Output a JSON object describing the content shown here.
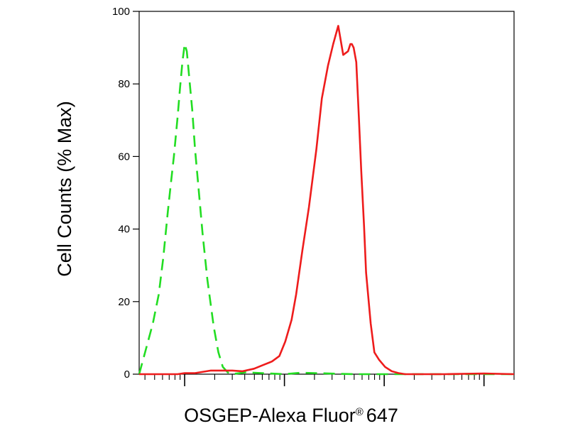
{
  "chart_data": {
    "type": "line",
    "title": "",
    "xlabel": "OSGEP-Alexa Fluor",
    "xlabel_mark": "®",
    "xlabel_suffix": "647",
    "ylabel": "Cell Counts (% Max)",
    "xscale": "log",
    "xlim": [
      3.5,
      20000
    ],
    "ylim": [
      0,
      100
    ],
    "yticks": [
      0,
      20,
      40,
      60,
      80,
      100
    ],
    "xticks_major": [
      10,
      100,
      1000
    ],
    "grid": false,
    "legend": "none",
    "series": [
      {
        "color": "#22dd22",
        "dash": "dashed",
        "x": [
          3.5,
          4.1,
          4.8,
          5.5,
          6.1,
          6.8,
          7.3,
          7.8,
          8.5,
          9.0,
          9.5,
          10.0,
          10.5,
          11.1,
          11.9,
          12.7,
          13.7,
          15.1,
          16.9,
          19.6,
          21.8,
          24.1,
          27.0,
          29.6,
          40.9,
          100.0,
          145.0,
          500.0,
          20000.0
        ],
        "y": [
          0,
          7,
          14,
          22,
          32,
          45,
          53,
          60,
          71,
          79,
          86,
          91,
          89,
          82,
          73,
          62,
          52,
          39,
          26,
          13,
          6,
          2,
          0.5,
          0,
          0.5,
          0,
          0.4,
          0,
          0
        ]
      },
      {
        "color": "#ee1c1c",
        "dash": "solid",
        "x": [
          3.5,
          8.5,
          10.0,
          12.7,
          18.3,
          30.0,
          38.0,
          49.6,
          61.0,
          75.0,
          89.0,
          102.0,
          118.0,
          131.0,
          151.0,
          176.0,
          209.0,
          237.0,
          273.0,
          308.0,
          346.0,
          388.0,
          434.0,
          458.0,
          473.0,
          494.0,
          525.0,
          557.0,
          589.0,
          627.0,
          658.0,
          732.0,
          797.0,
          887.0,
          1020.0,
          1190.0,
          1390.0,
          1620.0,
          1960.0,
          2400.0,
          2830.0,
          4000.0,
          10000.0,
          20000.0
        ],
        "y": [
          0,
          0,
          0.3,
          0.3,
          1,
          1,
          0.8,
          1.5,
          2.5,
          3.5,
          5,
          9,
          15,
          22,
          34,
          46,
          62,
          76,
          85,
          91,
          96,
          88,
          89,
          91,
          91,
          90,
          86,
          71,
          56,
          41,
          28,
          14,
          6,
          4,
          2,
          0.8,
          0.3,
          0,
          0,
          0,
          0,
          0,
          0.2,
          0
        ]
      }
    ]
  }
}
